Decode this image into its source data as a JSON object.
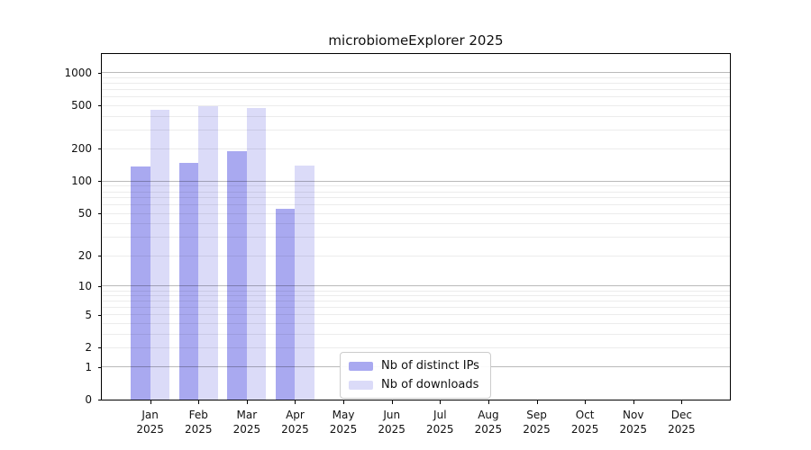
{
  "title": "microbiomeExplorer 2025",
  "chart_data": {
    "type": "bar",
    "title": "microbiomeExplorer 2025",
    "xlabel": "",
    "ylabel": "",
    "x_categories": [
      "Jan",
      "Feb",
      "Mar",
      "Apr",
      "May",
      "Jun",
      "Jul",
      "Aug",
      "Sep",
      "Oct",
      "Nov",
      "Dec"
    ],
    "x_year": "2025",
    "y_ticks": [
      0,
      1,
      2,
      5,
      10,
      20,
      50,
      100,
      200,
      500,
      1000
    ],
    "y_scale": "log1p",
    "ylim": [
      0,
      1500
    ],
    "grid": "horizontal minor log gridlines at 1-9,10-90,100-900,1000; decade lines 1,10,100,1000 darker",
    "legend_position": "inside lower-center",
    "series": [
      {
        "name": "Nb of distinct IPs",
        "color": "#a9a9f0",
        "values": [
          137,
          148,
          190,
          56,
          null,
          null,
          null,
          null,
          null,
          null,
          null,
          null
        ]
      },
      {
        "name": "Nb of downloads",
        "color": "#dbdbf8",
        "values": [
          460,
          495,
          477,
          141,
          null,
          null,
          null,
          null,
          null,
          null,
          null,
          null
        ]
      }
    ],
    "colors": {
      "frame": "#000000",
      "grid_minor": "#ececec",
      "grid_decade": "#b5b5b5",
      "text": "#111111"
    }
  }
}
